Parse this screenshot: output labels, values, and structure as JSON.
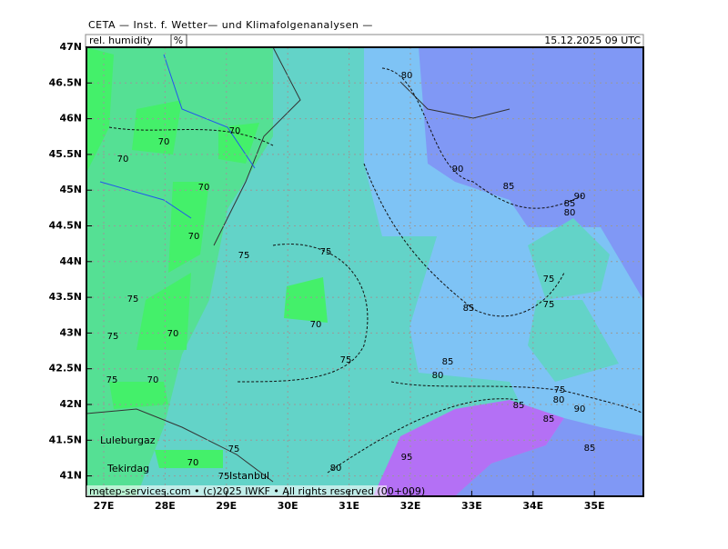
{
  "header": {
    "institute": "CETA — Inst. f. Wetter— und Klimafolgenanalysen —",
    "parameter": "rel. humidity",
    "unit": "%",
    "valid_time": "15.12.2025 09 UTC"
  },
  "footer": "metep-services.com • (c)2025 IWKF • All rights reserved (00+009)",
  "lat_labels": [
    "47N",
    "46.5N",
    "46N",
    "45.5N",
    "45N",
    "44.5N",
    "44N",
    "43.5N",
    "43N",
    "42.5N",
    "42N",
    "41.5N",
    "41N"
  ],
  "lon_labels": [
    "27E",
    "28E",
    "29E",
    "30E",
    "31E",
    "32E",
    "33E",
    "34E",
    "35E"
  ],
  "places": [
    "Luleburgaz",
    "Tekirdag",
    "Istanbul"
  ],
  "contour_labels": [
    80,
    70,
    70,
    70,
    70,
    90,
    85,
    90,
    85,
    80,
    70,
    75,
    75,
    75,
    75,
    75,
    85,
    70,
    75,
    70,
    85,
    75,
    80,
    75,
    70,
    75,
    80,
    85,
    90,
    85,
    85,
    75,
    70,
    95,
    80,
    75
  ]
}
